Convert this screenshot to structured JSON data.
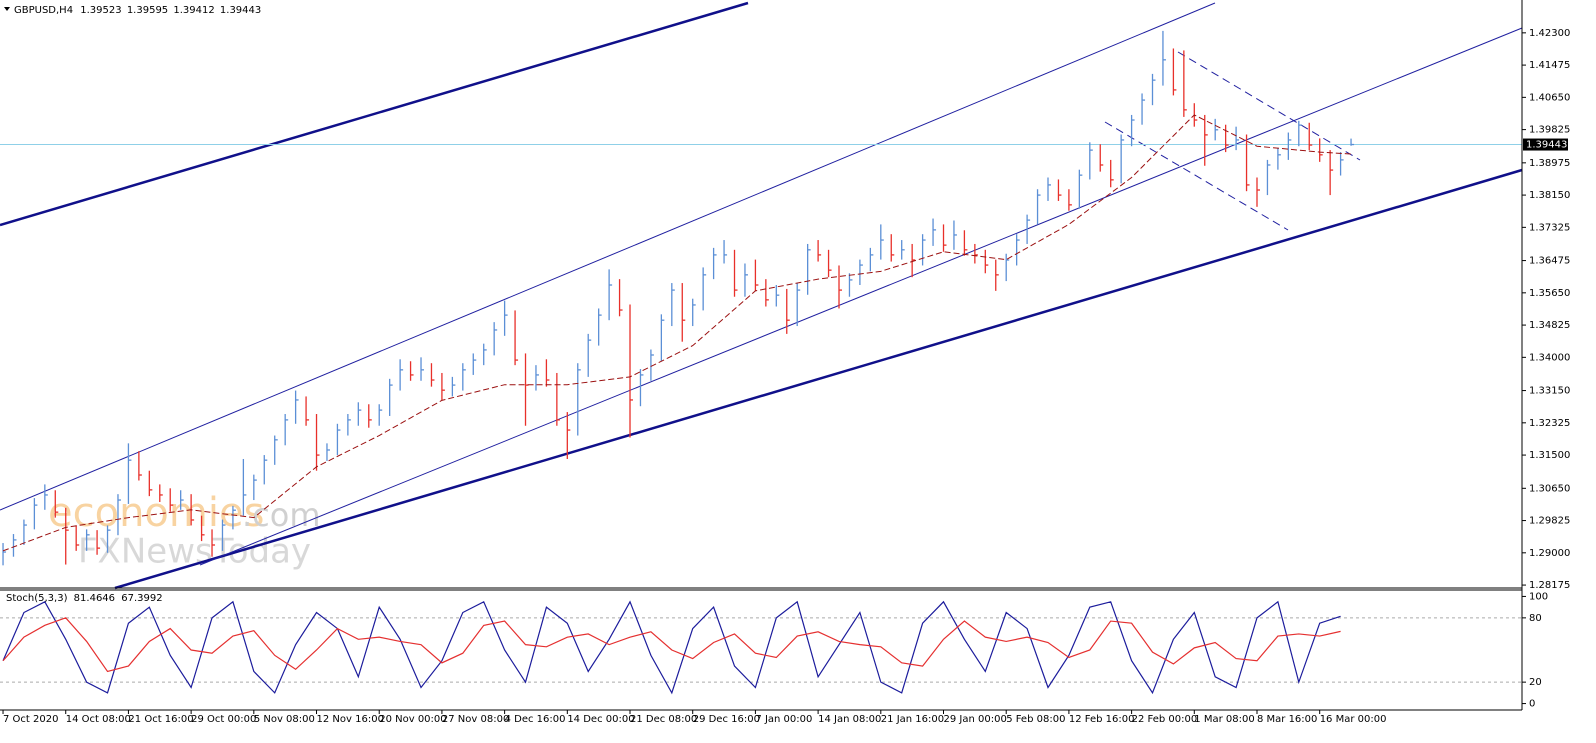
{
  "chart_data": [
    {
      "type": "ohlc",
      "symbol": "GBPUSD,H4",
      "header_values": [
        1.39523,
        1.39595,
        1.39412,
        1.39443
      ],
      "current_price": 1.39443,
      "up_color": "#5b8fd6",
      "down_color": "#e8302a",
      "xlim": [
        -0.29,
        145.36
      ],
      "ylim": [
        1.281,
        1.4314
      ],
      "yticks": [
        {
          "value": 1.423,
          "label": "1.42300"
        },
        1.41475,
        {
          "value": 1.4065,
          "label": "1.40650"
        },
        1.39825,
        1.38975,
        {
          "value": 1.3815,
          "label": "1.38150"
        },
        1.37325,
        1.36475,
        {
          "value": 1.3565,
          "label": "1.35650"
        },
        1.34825,
        {
          "value": 1.34,
          "label": "1.34000"
        },
        {
          "value": 1.3315,
          "label": "1.33150"
        },
        1.32325,
        {
          "value": 1.315,
          "label": "1.31500"
        },
        {
          "value": 1.3065,
          "label": "1.30650"
        },
        1.29825,
        {
          "value": 1.29,
          "label": "1.29000"
        },
        1.28175
      ],
      "xticks": [
        {
          "value": 0,
          "label": "7 Oct 2020"
        },
        {
          "value": 6,
          "label": "14 Oct 08:00"
        },
        {
          "value": 12,
          "label": "21 Oct 16:00"
        },
        {
          "value": 18,
          "label": "29 Oct 00:00"
        },
        {
          "value": 24,
          "label": "5 Nov 08:00"
        },
        {
          "value": 30,
          "label": "12 Nov 16:00"
        },
        {
          "value": 36,
          "label": "20 Nov 00:00"
        },
        {
          "value": 42,
          "label": "27 Nov 08:00"
        },
        {
          "value": 48,
          "label": "4 Dec 16:00"
        },
        {
          "value": 54,
          "label": "14 Dec 00:00"
        },
        {
          "value": 60,
          "label": "21 Dec 08:00"
        },
        {
          "value": 66,
          "label": "29 Dec 16:00"
        },
        {
          "value": 72,
          "label": "7 Jan 00:00"
        },
        {
          "value": 78,
          "label": "14 Jan 08:00"
        },
        {
          "value": 84,
          "label": "21 Jan 16:00"
        },
        {
          "value": 90,
          "label": "29 Jan 00:00"
        },
        {
          "value": 96,
          "label": "5 Feb 08:00"
        },
        {
          "value": 102,
          "label": "12 Feb 16:00"
        },
        {
          "value": 108,
          "label": "22 Feb 00:00"
        },
        {
          "value": 114,
          "label": "1 Mar 08:00"
        },
        {
          "value": 120,
          "label": "8 Mar 16:00"
        },
        {
          "value": 126,
          "label": "16 Mar 00:00"
        }
      ],
      "bars": {
        "high": [
          1.2925,
          1.2948,
          1.2985,
          1.304,
          1.3075,
          1.306,
          1.3015,
          1.297,
          1.296,
          1.2958,
          1.297,
          1.305,
          1.318,
          1.316,
          1.311,
          1.3075,
          1.3065,
          1.306,
          1.305,
          1.2995,
          1.296,
          1.2985,
          1.302,
          1.314,
          1.31,
          1.315,
          1.32,
          1.3255,
          1.3315,
          1.33,
          1.3255,
          1.318,
          1.323,
          1.3255,
          1.3285,
          1.328,
          1.328,
          1.3345,
          1.3395,
          1.339,
          1.34,
          1.3385,
          1.336,
          1.335,
          1.3385,
          1.341,
          1.3435,
          1.349,
          1.3545,
          1.352,
          1.341,
          1.338,
          1.3395,
          1.336,
          1.326,
          1.3385,
          1.346,
          1.3525,
          1.3625,
          1.36,
          1.3535,
          1.337,
          1.342,
          1.351,
          1.359,
          1.359,
          1.355,
          1.363,
          1.368,
          1.37,
          1.3675,
          1.364,
          1.365,
          1.36,
          1.3585,
          1.3575,
          1.359,
          1.369,
          1.37,
          1.3675,
          1.3635,
          1.3615,
          1.365,
          1.368,
          1.374,
          1.3715,
          1.37,
          1.369,
          1.3715,
          1.3755,
          1.374,
          1.375,
          1.3725,
          1.369,
          1.3675,
          1.365,
          1.3665,
          1.3715,
          1.3765,
          1.383,
          1.386,
          1.3855,
          1.383,
          1.388,
          1.395,
          1.3945,
          1.3905,
          1.397,
          1.402,
          1.4075,
          1.4125,
          1.4235,
          1.419,
          1.4185,
          1.405,
          1.402,
          1.401,
          1.3995,
          1.399,
          1.397,
          1.386,
          1.3905,
          1.3935,
          1.3975,
          1.4005,
          1.4,
          1.396,
          1.393,
          1.3925,
          1.39595
        ],
        "low": [
          1.2868,
          1.289,
          1.292,
          1.296,
          1.301,
          1.299,
          1.287,
          1.2905,
          1.2905,
          1.2895,
          1.29,
          1.2945,
          1.3025,
          1.3085,
          1.3045,
          1.303,
          1.3005,
          1.301,
          1.297,
          1.293,
          1.289,
          1.2905,
          1.296,
          1.2995,
          1.3035,
          1.3075,
          1.3125,
          1.3175,
          1.323,
          1.3225,
          1.311,
          1.3135,
          1.315,
          1.32,
          1.3225,
          1.322,
          1.3225,
          1.325,
          1.3315,
          1.334,
          1.334,
          1.3325,
          1.329,
          1.33,
          1.3315,
          1.3355,
          1.338,
          1.3405,
          1.3455,
          1.338,
          1.3225,
          1.3315,
          1.3325,
          1.3225,
          1.314,
          1.32,
          1.335,
          1.343,
          1.3495,
          1.3505,
          1.3195,
          1.3275,
          1.334,
          1.339,
          1.348,
          1.344,
          1.348,
          1.352,
          1.36,
          1.364,
          1.3555,
          1.3555,
          1.357,
          1.353,
          1.353,
          1.346,
          1.348,
          1.356,
          1.3645,
          1.3605,
          1.3525,
          1.3555,
          1.3585,
          1.362,
          1.365,
          1.3645,
          1.365,
          1.3605,
          1.3635,
          1.3685,
          1.367,
          1.3675,
          1.366,
          1.364,
          1.3615,
          1.357,
          1.3595,
          1.3635,
          1.369,
          1.374,
          1.38,
          1.38,
          1.3775,
          1.378,
          1.3855,
          1.3875,
          1.3835,
          1.3845,
          1.394,
          1.3995,
          1.4045,
          1.4095,
          1.407,
          1.4015,
          1.399,
          1.389,
          1.3955,
          1.3925,
          1.393,
          1.3825,
          1.3785,
          1.3815,
          1.388,
          1.3905,
          1.394,
          1.393,
          1.39,
          1.3815,
          1.3865,
          1.39412
        ],
        "close": [
          1.2902,
          1.2933,
          1.2971,
          1.3022,
          1.3048,
          1.3004,
          1.2958,
          1.292,
          1.2946,
          1.2912,
          1.2958,
          1.3035,
          1.3137,
          1.3099,
          1.3061,
          1.3048,
          1.3022,
          1.3035,
          1.2984,
          1.2946,
          1.292,
          1.2971,
          1.3009,
          1.3048,
          1.3086,
          1.3137,
          1.3189,
          1.324,
          1.3291,
          1.324,
          1.315,
          1.3163,
          1.3214,
          1.324,
          1.3265,
          1.324,
          1.3265,
          1.3329,
          1.3368,
          1.3355,
          1.3368,
          1.3342,
          1.3316,
          1.3329,
          1.3368,
          1.3393,
          1.3419,
          1.347,
          1.3508,
          1.3393,
          1.3329,
          1.3355,
          1.3342,
          1.324,
          1.3214,
          1.3368,
          1.3444,
          1.3508,
          1.3585,
          1.3521,
          1.3291,
          1.3355,
          1.3406,
          1.3495,
          1.3572,
          1.3495,
          1.3534,
          1.3611,
          1.3662,
          1.3662,
          1.3572,
          1.3611,
          1.3585,
          1.3547,
          1.3559,
          1.3495,
          1.3572,
          1.3675,
          1.3662,
          1.3623,
          1.3572,
          1.3598,
          1.3636,
          1.3662,
          1.37,
          1.3662,
          1.3675,
          1.3649,
          1.37,
          1.3726,
          1.3687,
          1.3713,
          1.3675,
          1.3662,
          1.3636,
          1.3611,
          1.3649,
          1.37,
          1.3751,
          1.3815,
          1.3841,
          1.3815,
          1.379,
          1.3866,
          1.393,
          1.3892,
          1.3854,
          1.3956,
          1.4007,
          1.4058,
          1.4109,
          1.4161,
          1.4084,
          1.4033,
          1.4007,
          1.3969,
          1.3982,
          1.3943,
          1.3956,
          1.3841,
          1.3828,
          1.3892,
          1.3918,
          1.3956,
          1.3994,
          1.3943,
          1.3918,
          1.3879,
          1.3905,
          1.39443
        ]
      },
      "moving_average": {
        "color": "#9b1010",
        "x": [
          0,
          6,
          12,
          18,
          24,
          30,
          36,
          42,
          48,
          54,
          60,
          66,
          72,
          78,
          84,
          90,
          96,
          102,
          108,
          114,
          120,
          126,
          129
        ],
        "values": [
          1.2905,
          1.2965,
          1.299,
          1.301,
          1.299,
          1.312,
          1.32,
          1.329,
          1.333,
          1.333,
          1.335,
          1.343,
          1.357,
          1.36,
          1.362,
          1.367,
          1.365,
          1.374,
          1.386,
          1.402,
          1.394,
          1.3925,
          1.392
        ]
      },
      "watermark": [
        "economies",
        ".com",
        "FXNewsToday"
      ]
    },
    {
      "type": "line",
      "label": "Stoch(5,3,3)",
      "xlim": [
        -0.29,
        145.36
      ],
      "ylim": [
        -6,
        106
      ],
      "yticks": [
        0,
        20,
        80,
        100
      ],
      "levels": [
        20,
        80
      ],
      "x": [
        0,
        2,
        4,
        6,
        8,
        10,
        12,
        14,
        16,
        18,
        20,
        22,
        24,
        26,
        28,
        30,
        32,
        34,
        36,
        38,
        40,
        42,
        44,
        46,
        48,
        50,
        52,
        54,
        56,
        58,
        60,
        62,
        64,
        66,
        68,
        70,
        72,
        74,
        76,
        78,
        80,
        82,
        84,
        86,
        88,
        90,
        92,
        94,
        96,
        98,
        100,
        102,
        104,
        106,
        108,
        110,
        112,
        114,
        116,
        118,
        120,
        122,
        124,
        126,
        128
      ],
      "series": [
        {
          "color": "#1c1c9c",
          "values": [
            40,
            85,
            95,
            60,
            20,
            10,
            75,
            90,
            45,
            15,
            80,
            95,
            30,
            10,
            55,
            85,
            70,
            25,
            90,
            60,
            15,
            40,
            85,
            95,
            50,
            20,
            90,
            75,
            30,
            60,
            95,
            45,
            10,
            70,
            90,
            35,
            15,
            80,
            95,
            25,
            55,
            85,
            20,
            10,
            75,
            95,
            60,
            30,
            85,
            70,
            15,
            45,
            90,
            95,
            40,
            10,
            60,
            85,
            25,
            15,
            80,
            95,
            20,
            75,
            81.4646
          ]
        },
        {
          "color": "#e53030",
          "values": [
            40,
            62,
            73,
            80,
            58,
            30,
            35,
            58,
            70,
            50,
            47,
            63,
            68,
            45,
            32,
            50,
            70,
            60,
            62,
            58,
            55,
            38,
            47,
            73,
            77,
            55,
            53,
            62,
            65,
            55,
            62,
            67,
            50,
            42,
            57,
            65,
            47,
            43,
            63,
            67,
            58,
            55,
            53,
            38,
            35,
            60,
            77,
            62,
            58,
            62,
            57,
            43,
            50,
            77,
            75,
            48,
            37,
            52,
            57,
            42,
            40,
            63,
            65,
            63,
            67.3992
          ]
        }
      ]
    }
  ]
}
